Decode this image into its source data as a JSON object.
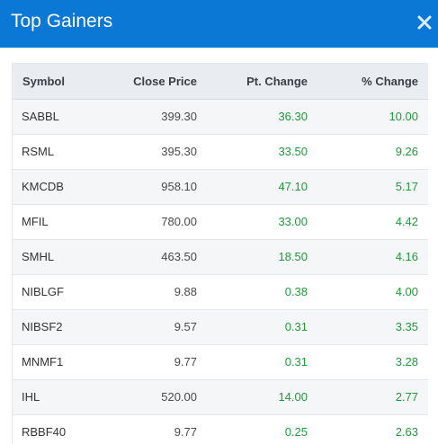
{
  "modal": {
    "title": "Top Gainers",
    "close_icon": "close-icon"
  },
  "table": {
    "headers": {
      "symbol": "Symbol",
      "close_price": "Close Price",
      "pt_change": "Pt. Change",
      "pct_change": "% Change"
    },
    "rows": [
      {
        "symbol": "SABBL",
        "close": "399.30",
        "pt": "36.30",
        "pct": "10.00"
      },
      {
        "symbol": "RSML",
        "close": "395.30",
        "pt": "33.50",
        "pct": "9.26"
      },
      {
        "symbol": "KMCDB",
        "close": "958.10",
        "pt": "47.10",
        "pct": "5.17"
      },
      {
        "symbol": "MFIL",
        "close": "780.00",
        "pt": "33.00",
        "pct": "4.42"
      },
      {
        "symbol": "SMHL",
        "close": "463.50",
        "pt": "18.50",
        "pct": "4.16"
      },
      {
        "symbol": "NIBLGF",
        "close": "9.88",
        "pt": "0.38",
        "pct": "4.00"
      },
      {
        "symbol": "NIBSF2",
        "close": "9.57",
        "pt": "0.31",
        "pct": "3.35"
      },
      {
        "symbol": "MNMF1",
        "close": "9.77",
        "pt": "0.31",
        "pct": "3.28"
      },
      {
        "symbol": "IHL",
        "close": "520.00",
        "pt": "14.00",
        "pct": "2.77"
      },
      {
        "symbol": "RBBF40",
        "close": "9.77",
        "pt": "0.25",
        "pct": "2.63"
      }
    ]
  },
  "colors": {
    "header_bg": "#0c78d6",
    "gain_text": "#1f9a3a",
    "row_alt_bg": "#f5f6f7"
  }
}
